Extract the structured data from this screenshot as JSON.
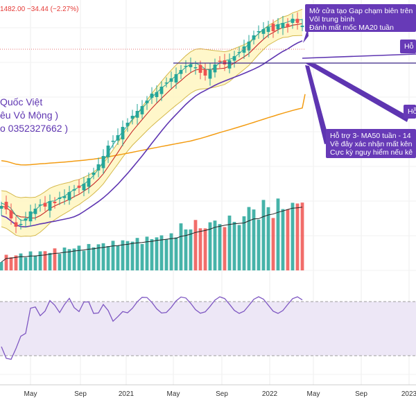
{
  "header": {
    "price_text": "1482.00  −34.44 (−2.27%)"
  },
  "author": {
    "line1": "Quốc Việt",
    "line2": "êu Vỏ Mộng )",
    "line3": "o 0352327662 )"
  },
  "annotations": [
    {
      "id": "gap",
      "lines": [
        "Mở cửa tạo Gap chạm biên trên",
        "Vôl trung bình",
        "Đánh mất mốc MA20 tuần"
      ]
    },
    {
      "id": "support1",
      "lines": [
        "Hỗ"
      ]
    },
    {
      "id": "support2",
      "lines": [
        "Hỗ"
      ]
    },
    {
      "id": "support3",
      "lines": [
        "Hỗ trợ 3- MA50 tuần - 14",
        "Về đây xác nhận mất kên",
        "Cực kỳ nguy hiểm nếu kê"
      ]
    }
  ],
  "chart_data": [
    {
      "type": "candlestick",
      "title": "",
      "x_ticks": [
        "May",
        "Sep",
        "2021",
        "May",
        "Sep",
        "2022",
        "May",
        "Sep",
        "2023"
      ],
      "overlays": [
        "Bollinger Bands",
        "MA20",
        "MA50",
        "MA200"
      ],
      "support_line": "horizontal",
      "colors": {
        "up": "#26a69a",
        "down": "#ef5350",
        "band_fill": "#fff6c4",
        "band_line": "#d4b84a",
        "ma_short": "#26a69a",
        "ma_mid": "#c62828",
        "ma_long": "#5e35b1",
        "ma_200": "#f39c12"
      },
      "close_trend": [
        48,
        43,
        30,
        18,
        22,
        30,
        40,
        44,
        50,
        47,
        55,
        52,
        60,
        62,
        68,
        72,
        74,
        80,
        88,
        96,
        108,
        120,
        135,
        142,
        150,
        162,
        168,
        178,
        185,
        192,
        200,
        210,
        212,
        220,
        226,
        232,
        238,
        244,
        250,
        252,
        248,
        240,
        236,
        244,
        252,
        256,
        252,
        258,
        264,
        270,
        278,
        285,
        294,
        300,
        303,
        306,
        300,
        310,
        312,
        306,
        318,
        312,
        308
      ]
    },
    {
      "type": "bar",
      "title": "Volume",
      "colors": {
        "up": "#26a69a",
        "down": "#ef5350"
      }
    },
    {
      "type": "line",
      "title": "RSI",
      "colors": {
        "line": "#7e57c2",
        "band_fill": "#ede7f6"
      }
    }
  ]
}
